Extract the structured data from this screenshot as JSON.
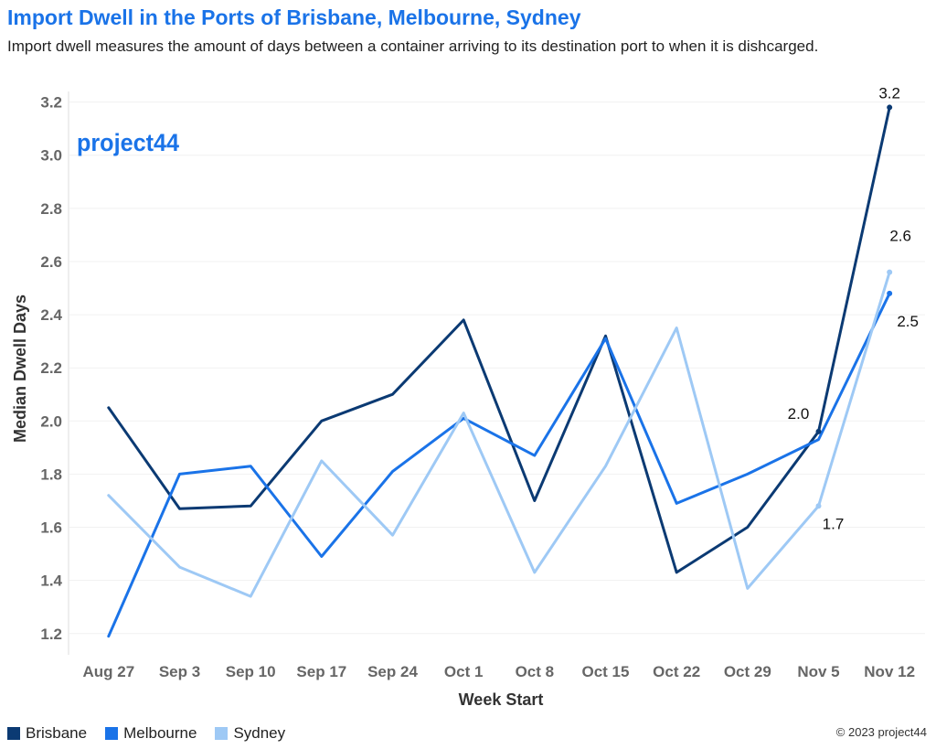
{
  "title": "Import Dwell in the Ports of Brisbane, Melbourne, Sydney",
  "subtitle": "Import dwell measures the amount of days between a container arriving to its destination port to when it is dishcarged.",
  "logo": {
    "text": "project44",
    "color": "#1a73e8"
  },
  "copyright": "© 2023 project44",
  "chart_data": {
    "type": "line",
    "xlabel": "Week Start",
    "ylabel": "Median Dwell Days",
    "categories": [
      "Aug 27",
      "Sep 3",
      "Sep 10",
      "Sep 17",
      "Sep 24",
      "Oct 1",
      "Oct 8",
      "Oct 15",
      "Oct 22",
      "Oct 29",
      "Nov 5",
      "Nov 12"
    ],
    "yticks": [
      1.2,
      1.4,
      1.6,
      1.8,
      2.0,
      2.2,
      2.4,
      2.6,
      2.8,
      3.0,
      3.2
    ],
    "ylim": [
      1.12,
      3.24
    ],
    "grid": true,
    "legend_position": "bottom-left",
    "series": [
      {
        "name": "Brisbane",
        "color": "#0b3a73",
        "values": [
          2.05,
          1.67,
          1.68,
          2.0,
          2.1,
          2.38,
          1.7,
          2.32,
          1.43,
          1.6,
          1.96,
          3.18
        ]
      },
      {
        "name": "Melbourne",
        "color": "#1a73e8",
        "values": [
          1.19,
          1.8,
          1.83,
          1.49,
          1.81,
          2.01,
          1.87,
          2.31,
          1.69,
          1.8,
          1.93,
          2.48
        ]
      },
      {
        "name": "Sydney",
        "color": "#9ec9f5",
        "values": [
          1.72,
          1.45,
          1.34,
          1.85,
          1.57,
          2.03,
          1.43,
          1.83,
          2.35,
          1.37,
          1.68,
          2.56
        ]
      }
    ],
    "annotations": [
      {
        "series": 0,
        "index": 10,
        "text": "2.0"
      },
      {
        "series": 0,
        "index": 11,
        "text": "3.2"
      },
      {
        "series": 1,
        "index": 11,
        "text": "2.5"
      },
      {
        "series": 2,
        "index": 10,
        "text": "1.7"
      },
      {
        "series": 2,
        "index": 11,
        "text": "2.6"
      }
    ]
  }
}
